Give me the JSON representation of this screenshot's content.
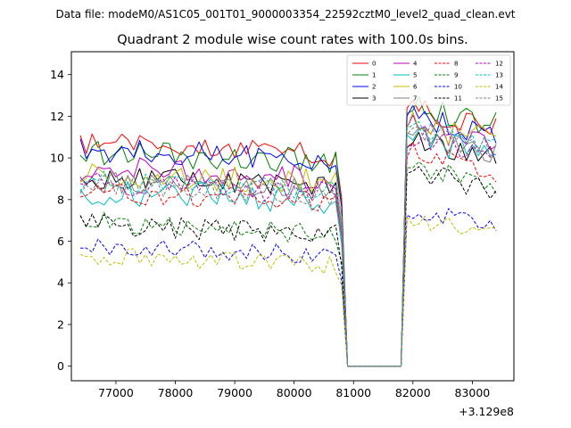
{
  "chart_data": {
    "type": "line",
    "suptitle": "Data file: modeM0/AS1C05_001T01_9000003354_22592cztM0_level2_quad_clean.evt",
    "title": "Quadrant 2 module wise count rates with 100.0s bins.",
    "xlabel": "",
    "ylabel": "",
    "x_offset_label": "+3.129e8",
    "xlim": [
      76250,
      83700
    ],
    "ylim": [
      -0.7,
      15.1
    ],
    "xticks": [
      77000,
      78000,
      79000,
      80000,
      81000,
      82000,
      83000
    ],
    "yticks": [
      0,
      2,
      4,
      6,
      8,
      10,
      12,
      14
    ],
    "legend_loc": "upper right",
    "legend_ncol": 4,
    "x_start": 76400,
    "x_step": 100,
    "n_points": 71,
    "gap": {
      "fall_index": 44,
      "zero_from_index": 45,
      "zero_to_index": 54,
      "rise_index": 55
    },
    "series": [
      {
        "name": "0",
        "color": "#ff0000",
        "dash": "solid",
        "mean_before": 10.2,
        "mean_after": 11.8,
        "spread": 0.35
      },
      {
        "name": "1",
        "color": "#008000",
        "dash": "solid",
        "mean_before": 9.8,
        "mean_after": 11.9,
        "spread": 0.35
      },
      {
        "name": "2",
        "color": "#0000ff",
        "dash": "solid",
        "mean_before": 9.9,
        "mean_after": 11.5,
        "spread": 0.35
      },
      {
        "name": "3",
        "color": "#000000",
        "dash": "solid",
        "mean_before": 8.6,
        "mean_after": 10.3,
        "spread": 0.3
      },
      {
        "name": "4",
        "color": "#bf00bf",
        "dash": "solid",
        "mean_before": 9.0,
        "mean_after": 11.0,
        "spread": 0.35
      },
      {
        "name": "5",
        "color": "#00bfbf",
        "dash": "solid",
        "mean_before": 7.9,
        "mean_after": 10.4,
        "spread": 0.35
      },
      {
        "name": "6",
        "color": "#bfbf00",
        "dash": "solid",
        "mean_before": 8.8,
        "mean_after": 11.1,
        "spread": 0.35
      },
      {
        "name": "7",
        "color": "#808080",
        "dash": "solid",
        "mean_before": 8.4,
        "mean_after": 10.6,
        "spread": 0.3
      },
      {
        "name": "8",
        "color": "#ff0000",
        "dash": "dashed",
        "mean_before": 7.9,
        "mean_after": 9.7,
        "spread": 0.3
      },
      {
        "name": "9",
        "color": "#008000",
        "dash": "dashed",
        "mean_before": 6.4,
        "mean_after": 9.0,
        "spread": 0.3
      },
      {
        "name": "10",
        "color": "#0000ff",
        "dash": "dashed",
        "mean_before": 5.3,
        "mean_after": 7.0,
        "spread": 0.25
      },
      {
        "name": "11",
        "color": "#000000",
        "dash": "dashed",
        "mean_before": 6.3,
        "mean_after": 8.8,
        "spread": 0.3
      },
      {
        "name": "12",
        "color": "#bf00bf",
        "dash": "dashed",
        "mean_before": 8.3,
        "mean_after": 10.5,
        "spread": 0.3
      },
      {
        "name": "13",
        "color": "#00bfbf",
        "dash": "dashed",
        "mean_before": 8.4,
        "mean_after": 11.0,
        "spread": 0.3
      },
      {
        "name": "14",
        "color": "#bfbf00",
        "dash": "dashed",
        "mean_before": 4.8,
        "mean_after": 6.6,
        "spread": 0.25
      },
      {
        "name": "15",
        "color": "#808080",
        "dash": "dashed",
        "mean_before": 8.2,
        "mean_after": 10.8,
        "spread": 0.3
      }
    ]
  }
}
